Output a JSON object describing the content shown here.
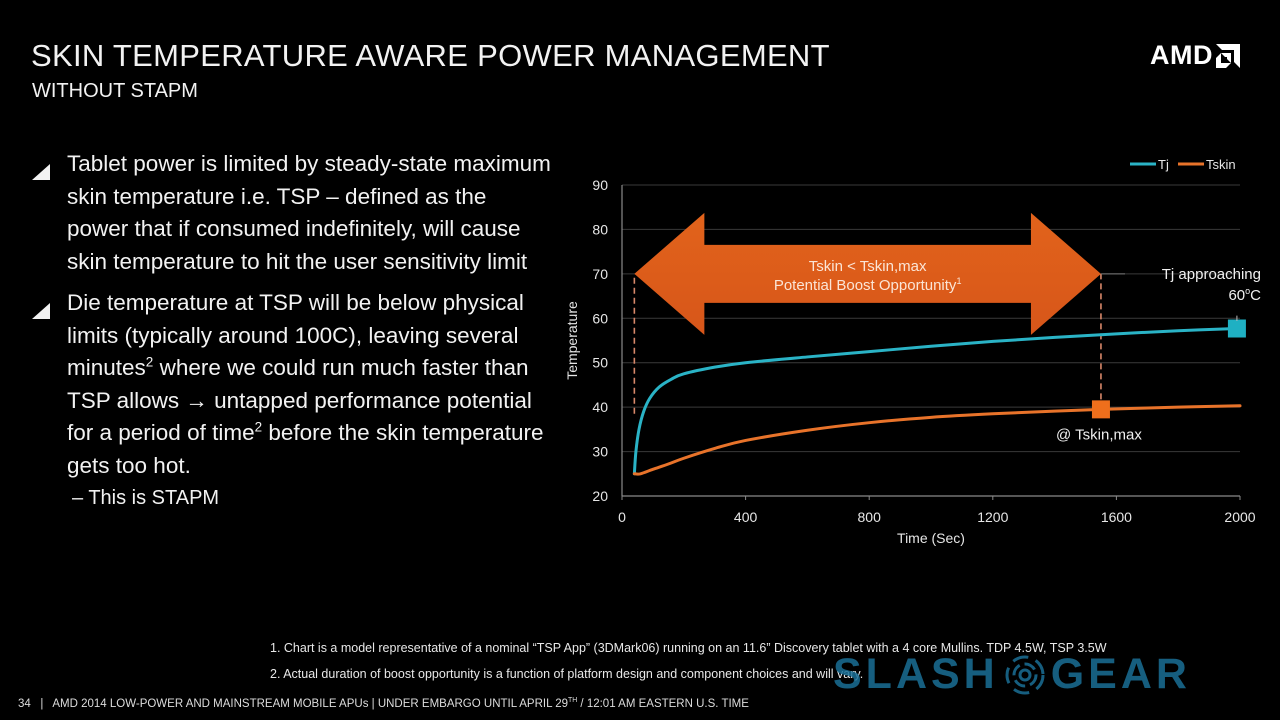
{
  "slide": {
    "title": "SKIN TEMPERATURE AWARE POWER MANAGEMENT",
    "subtitle": "WITHOUT STAPM",
    "logo": "AMD",
    "logo_icon": "amd-arrow-icon",
    "bullets": [
      {
        "icon": "triangle-bullet-icon",
        "text": "Tablet power is limited by steady-state maximum skin temperature i.e. TSP – defined as the power that if consumed indefinitely, will cause skin temperature to hit the user sensitivity limit"
      },
      {
        "icon": "triangle-bullet-icon",
        "text_parts": [
          "Die temperature at TSP will be below physical limits (typically around 100C), leaving several minutes",
          "2",
          " where we could run much faster than TSP allows → untapped performance potential for a period of time",
          "2",
          " before the skin temperature gets too hot."
        ]
      }
    ],
    "sub_bullet": "–  This is STAPM",
    "footnotes": [
      "1. Chart is a model representative of a nominal “TSP App” (3DMark06) running on an 11.6” Discovery tablet with a 4 core Mullins.  TDP 4.5W, TSP 3.5W",
      "2. Actual duration of boost opportunity is a function of platform design and component choices and will vary."
    ],
    "footer": {
      "page_number": "34",
      "text_before_sup": "AMD 2014 LOW-POWER AND MAINSTREAM MOBILE APUs | UNDER EMBARGO UNTIL APRIL 29",
      "sup": "TH",
      "text_after_sup": " / 12:01 AM EASTERN U.S. TIME"
    },
    "watermark": {
      "left": "SLASH",
      "right": "GEAR",
      "icon": "slashgear-radar-icon"
    }
  },
  "chart_data": {
    "type": "line",
    "title": "",
    "xlabel": "Time (Sec)",
    "ylabel": "Temperature",
    "xlim": [
      0,
      2000
    ],
    "ylim": [
      20,
      90
    ],
    "xticks": [
      0,
      400,
      800,
      1200,
      1600,
      2000
    ],
    "yticks": [
      20,
      30,
      40,
      50,
      60,
      70,
      80,
      90
    ],
    "grid": "horizontal",
    "legend_position": "top-right",
    "series": [
      {
        "name": "Tj",
        "color": "#2ab3c6",
        "x": [
          40,
          45,
          55,
          70,
          90,
          120,
          160,
          200,
          300,
          400,
          600,
          800,
          1000,
          1200,
          1400,
          1600,
          1800,
          1990
        ],
        "y": [
          25,
          30,
          35,
          39,
          42,
          44.5,
          46.3,
          47.5,
          49,
          50,
          51.3,
          52.5,
          53.7,
          54.8,
          55.7,
          56.5,
          57.2,
          57.7
        ]
      },
      {
        "name": "Tskin",
        "color": "#e8732a",
        "x": [
          40,
          60,
          100,
          150,
          200,
          300,
          400,
          600,
          800,
          1000,
          1200,
          1400,
          1550,
          1800,
          2000
        ],
        "y": [
          25,
          25,
          26,
          27.2,
          28.5,
          30.7,
          32.5,
          34.8,
          36.5,
          37.7,
          38.5,
          39.1,
          39.5,
          40,
          40.3
        ]
      }
    ],
    "markers": [
      {
        "series": "Tj",
        "x": 1990,
        "y": 57.7,
        "shape": "square",
        "color": "#1fb0c3"
      },
      {
        "series": "Tskin",
        "x": 1550,
        "y": 39.5,
        "shape": "square",
        "color": "#ef6f1c"
      }
    ],
    "reference_lines": [
      {
        "x": 40,
        "y_from": 38.5,
        "y_to": 70,
        "style": "dashed",
        "color": "#d9886a"
      },
      {
        "x": 1550,
        "y_from": 39.5,
        "y_to": 70,
        "style": "dashed",
        "color": "#d9886a"
      }
    ],
    "arrow_annotation": {
      "x_from": 40,
      "x_to": 1550,
      "y_center": 70,
      "color": "#e0601a",
      "line1": "Tskin < Tskin,max",
      "line2": "Potential Boost Opportunity",
      "line2_sup": "1"
    },
    "annotations": [
      {
        "text": "Tj approaching",
        "text2": "60",
        "text2_sup": "o",
        "text2_suffix": "C",
        "target": "Tj marker"
      },
      {
        "text": "@ Tskin,max",
        "target": "Tskin marker"
      }
    ]
  }
}
